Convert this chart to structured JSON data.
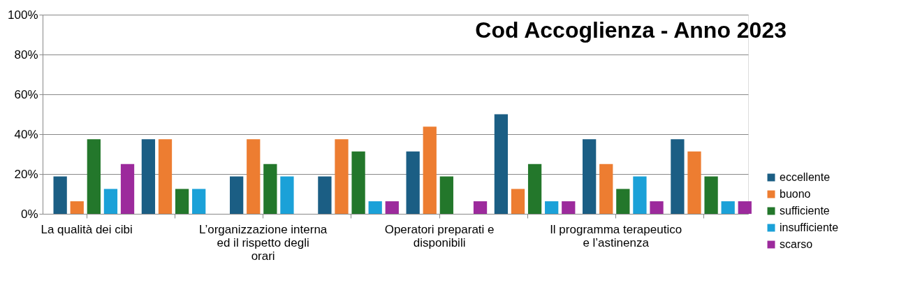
{
  "chart_data": {
    "type": "bar",
    "title": "Cod Accoglienza - Anno 2023",
    "categories": [
      "La qualità dei cibi",
      null,
      "L’organizzazione interna ed il rispetto degli orari",
      null,
      "Operatori preparati e disponibili",
      null,
      "Il programma terapeutico e l’astinenza",
      null
    ],
    "series": [
      {
        "name": "eccellente",
        "color": "#1b5e84",
        "values": [
          18.8,
          37.5,
          18.8,
          18.8,
          31.3,
          50,
          37.5,
          37.5
        ]
      },
      {
        "name": "buono",
        "color": "#ed7d31",
        "values": [
          6.3,
          37.5,
          37.5,
          37.5,
          43.8,
          12.5,
          25,
          31.3
        ]
      },
      {
        "name": "sufficiente",
        "color": "#23772b",
        "values": [
          37.5,
          12.5,
          25,
          31.3,
          18.8,
          25,
          12.5,
          18.8
        ]
      },
      {
        "name": "insufficiente",
        "color": "#1ba1d8",
        "values": [
          12.5,
          12.5,
          18.8,
          6.3,
          0,
          6.3,
          18.8,
          6.3
        ]
      },
      {
        "name": "scarso",
        "color": "#9c2a9c",
        "values": [
          25,
          0,
          0,
          6.3,
          6.3,
          6.3,
          6.3,
          6.3
        ]
      }
    ],
    "ylim": [
      0,
      100
    ],
    "yticks": [
      {
        "value": 0,
        "label": "0%"
      },
      {
        "value": 20,
        "label": "20%"
      },
      {
        "value": 40,
        "label": "40%"
      },
      {
        "value": 60,
        "label": "60%"
      },
      {
        "value": 80,
        "label": "80%"
      },
      {
        "value": 100,
        "label": "100%"
      }
    ],
    "grid": "y",
    "legend": "right"
  }
}
